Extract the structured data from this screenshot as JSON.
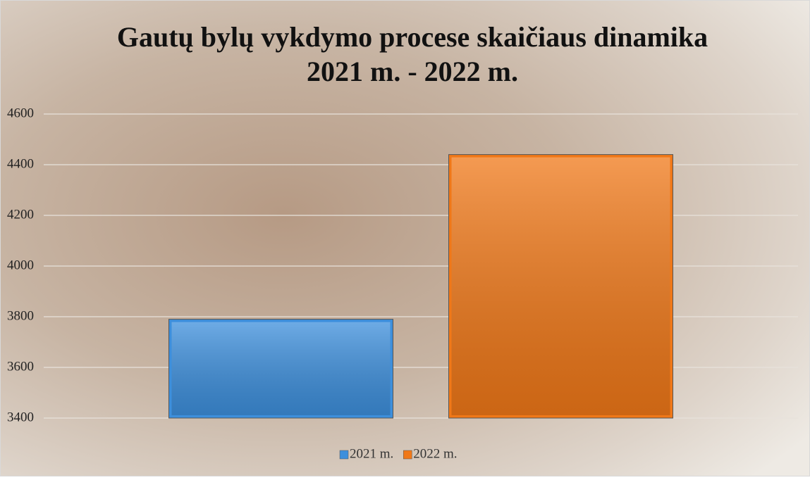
{
  "chart_data": {
    "type": "bar",
    "title": [
      "Gautų bylų vykdymo procese skaičiaus dinamika",
      "2021 m. - 2022 m."
    ],
    "categories": [
      null
    ],
    "series": [
      {
        "name": "2021 m.",
        "color": "#3d8fdc",
        "values": [
          3790
        ]
      },
      {
        "name": "2022 m.",
        "color": "#f07818",
        "values": [
          4440
        ]
      }
    ],
    "ylim": [
      3400,
      4600
    ],
    "yticks": [
      3400,
      3600,
      3800,
      4000,
      4200,
      4400,
      4600
    ],
    "grid": true,
    "legend": "bottom"
  }
}
